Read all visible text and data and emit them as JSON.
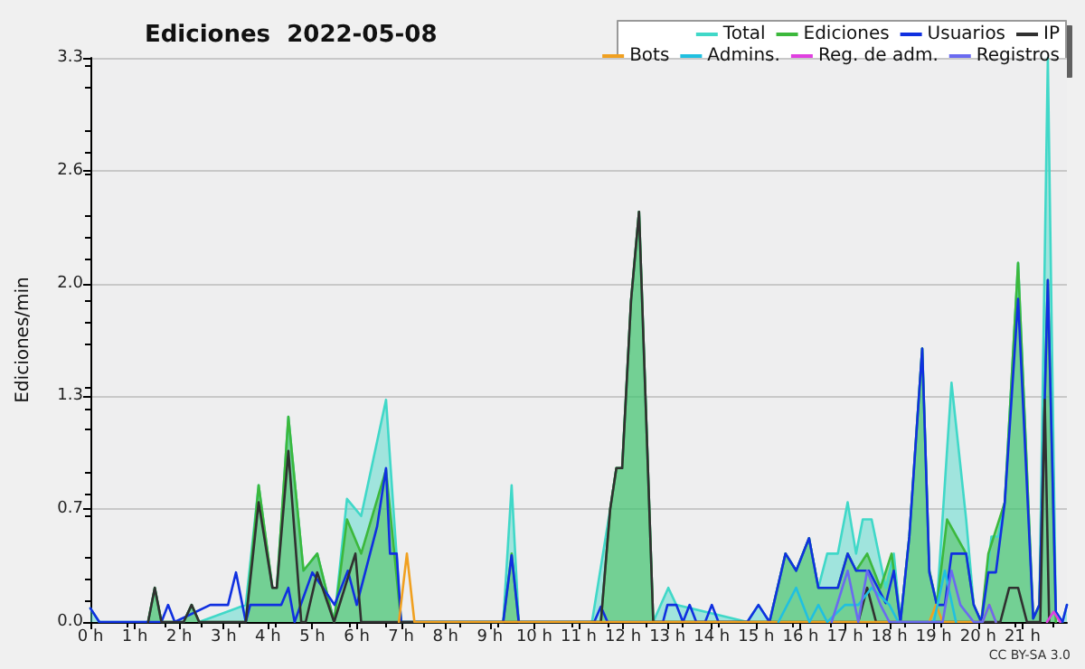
{
  "chart_data": {
    "type": "line",
    "title": "Ediciones  2022-05-08",
    "ylabel": "Ediciones/min",
    "annotations": [
      "CC BY-SA 3.0"
    ],
    "xlim": [
      0,
      22
    ],
    "xticks": [
      {
        "value": 0,
        "label": "0 h"
      },
      {
        "value": 1,
        "label": "1 h"
      },
      {
        "value": 2,
        "label": "2 h"
      },
      {
        "value": 3,
        "label": "3 h"
      },
      {
        "value": 4,
        "label": "4 h"
      },
      {
        "value": 5,
        "label": "5 h"
      },
      {
        "value": 6,
        "label": "6 h"
      },
      {
        "value": 7,
        "label": "7 h"
      },
      {
        "value": 8,
        "label": "8 h"
      },
      {
        "value": 9,
        "label": "9 h"
      },
      {
        "value": 10,
        "label": "10 h"
      },
      {
        "value": 11,
        "label": "11 h"
      },
      {
        "value": 12,
        "label": "12 h"
      },
      {
        "value": 13,
        "label": "13 h"
      },
      {
        "value": 14,
        "label": "14 h"
      },
      {
        "value": 15,
        "label": "15 h"
      },
      {
        "value": 16,
        "label": "16 h"
      },
      {
        "value": 17,
        "label": "17 h"
      },
      {
        "value": 18,
        "label": "18 h"
      },
      {
        "value": 19,
        "label": "19 h"
      },
      {
        "value": 20,
        "label": "20 h"
      },
      {
        "value": 21,
        "label": "21 h"
      }
    ],
    "ylim": [
      0,
      3.3
    ],
    "yticks": [
      {
        "value": 0,
        "label": "0.0"
      },
      {
        "value": 0.66,
        "label": "0.7"
      },
      {
        "value": 1.32,
        "label": "1.3"
      },
      {
        "value": 1.98,
        "label": "2.0"
      },
      {
        "value": 2.64,
        "label": "2.6"
      },
      {
        "value": 3.3,
        "label": "3.3"
      }
    ],
    "grid": "y",
    "legend": "top right",
    "marker": "none",
    "line_style": "solid",
    "series": [
      {
        "name": "Total",
        "type": "area",
        "color": "#40d8c8",
        "x": [
          0,
          0.2,
          1.3,
          1.45,
          1.6,
          2.1,
          2.28,
          2.45,
          3.5,
          3.79,
          4.1,
          4.2,
          4.46,
          4.8,
          5.11,
          5.49,
          5.78,
          6.1,
          6.66,
          7.0,
          9.3,
          9.49,
          9.65,
          11.3,
          11.71,
          11.85,
          11.98,
          12.18,
          12.36,
          12.68,
          12.85,
          13.02,
          13.2,
          14.8,
          15.05,
          15.3,
          15.66,
          15.9,
          16.19,
          16.4,
          16.6,
          16.84,
          17.06,
          17.25,
          17.4,
          17.6,
          17.92,
          18.1,
          18.25,
          18.45,
          18.74,
          18.9,
          19.07,
          19.4,
          19.73,
          19.9,
          20.07,
          20.3,
          20.45,
          20.6,
          20.9,
          21.24,
          21.38,
          21.57,
          21.75,
          21.9,
          22.0
        ],
        "values": [
          0.08,
          0,
          0,
          0.2,
          0,
          0,
          0.1,
          0,
          0.1,
          0.8,
          0.2,
          0.2,
          1.2,
          0.3,
          0.4,
          0,
          0.72,
          0.62,
          1.3,
          0,
          0,
          0.8,
          0,
          0,
          0.66,
          0.9,
          0.9,
          1.88,
          2.4,
          0,
          0.1,
          0.2,
          0.1,
          0,
          0.1,
          0,
          0.4,
          0.3,
          0.49,
          0.2,
          0.4,
          0.4,
          0.7,
          0.4,
          0.6,
          0.6,
          0.2,
          0.4,
          0,
          0.5,
          1.6,
          0.3,
          0.1,
          1.4,
          0.6,
          0.1,
          0,
          0.5,
          0.5,
          0.7,
          2.1,
          0.02,
          0.1,
          3.3,
          0.06,
          0,
          0.1
        ]
      },
      {
        "name": "Ediciones",
        "type": "area",
        "color": "#3cb83c",
        "x": [
          1.3,
          1.45,
          1.6,
          2.1,
          2.28,
          2.45,
          3.5,
          3.79,
          4.1,
          4.2,
          4.46,
          4.8,
          5.11,
          5.49,
          5.78,
          6.1,
          6.66,
          7.0,
          9.3,
          9.49,
          9.65,
          11.5,
          11.71,
          11.85,
          11.98,
          12.18,
          12.36,
          12.68,
          15.3,
          15.66,
          15.9,
          16.19,
          16.4,
          16.84,
          17.06,
          17.25,
          17.5,
          17.8,
          18.05,
          18.25,
          18.45,
          18.74,
          18.9,
          19.07,
          19.3,
          19.73,
          19.9,
          20.07,
          20.23,
          20.6,
          20.9,
          21.24,
          21.38,
          21.57,
          21.75
        ],
        "values": [
          0,
          0.2,
          0,
          0,
          0.1,
          0,
          0,
          0.8,
          0.2,
          0.2,
          1.2,
          0.3,
          0.4,
          0,
          0.6,
          0.4,
          0.89,
          0,
          0,
          0.4,
          0,
          0,
          0.66,
          0.9,
          0.9,
          1.88,
          2.4,
          0,
          0,
          0.4,
          0.3,
          0.49,
          0.2,
          0.2,
          0.4,
          0.3,
          0.4,
          0.2,
          0.4,
          0,
          0.5,
          1.6,
          0.3,
          0.1,
          0.6,
          0.4,
          0.1,
          0,
          0.4,
          0.7,
          2.1,
          0.02,
          0.1,
          2.0,
          0
        ]
      },
      {
        "name": "Usuarios",
        "type": "line",
        "color": "#1030e0",
        "x": [
          0,
          0.2,
          1.6,
          1.75,
          1.9,
          2.7,
          3.1,
          3.28,
          3.5,
          3.6,
          4.0,
          4.3,
          4.46,
          4.6,
          5.0,
          5.5,
          5.8,
          6.0,
          6.46,
          6.66,
          6.75,
          6.9,
          7.0,
          9.3,
          9.49,
          9.65,
          11.35,
          11.5,
          11.65,
          12.9,
          13.0,
          13.2,
          13.35,
          13.5,
          13.65,
          13.85,
          14.0,
          14.15,
          14.8,
          15.05,
          15.3,
          15.66,
          15.9,
          16.19,
          16.4,
          16.84,
          17.06,
          17.25,
          17.54,
          17.92,
          18.1,
          18.25,
          18.45,
          18.74,
          18.9,
          19.07,
          19.25,
          19.4,
          19.73,
          19.9,
          20.07,
          20.23,
          20.4,
          20.6,
          20.9,
          21.24,
          21.38,
          21.57,
          21.75,
          21.9,
          22.0
        ],
        "values": [
          0.08,
          0,
          0,
          0.1,
          0,
          0.1,
          0.1,
          0.29,
          0,
          0.1,
          0.1,
          0.1,
          0.2,
          0,
          0.29,
          0.1,
          0.3,
          0.1,
          0.56,
          0.9,
          0.4,
          0.4,
          0,
          0,
          0.39,
          0,
          0,
          0.09,
          0,
          0,
          0.1,
          0.1,
          0,
          0.1,
          0,
          0,
          0.1,
          0,
          0,
          0.1,
          0,
          0.4,
          0.3,
          0.49,
          0.2,
          0.2,
          0.4,
          0.3,
          0.3,
          0.11,
          0.3,
          0,
          0.5,
          1.6,
          0.29,
          0.1,
          0.1,
          0.4,
          0.4,
          0.1,
          0,
          0.29,
          0.29,
          0.7,
          1.89,
          0.02,
          0.1,
          2.0,
          0.06,
          0,
          0.1
        ]
      },
      {
        "name": "IP",
        "type": "line",
        "color": "#303030",
        "x": [
          1.3,
          1.45,
          1.6,
          2.1,
          2.28,
          2.45,
          3.5,
          3.79,
          4.1,
          4.2,
          4.46,
          4.75,
          4.85,
          5.11,
          5.49,
          5.97,
          6.1,
          11.5,
          11.71,
          11.85,
          11.98,
          12.18,
          12.36,
          12.68,
          17.3,
          17.5,
          17.7,
          20.5,
          20.7,
          20.9,
          21.1,
          21.4,
          21.5,
          21.6
        ],
        "values": [
          0,
          0.2,
          0,
          0,
          0.1,
          0,
          0,
          0.7,
          0.2,
          0.2,
          1.0,
          0,
          0,
          0.29,
          0,
          0.4,
          0,
          0,
          0.66,
          0.9,
          0.9,
          1.88,
          2.4,
          0,
          0,
          0.2,
          0,
          0,
          0.2,
          0.2,
          0,
          0,
          1.3,
          0
        ]
      },
      {
        "name": "Bots",
        "type": "line",
        "color": "#f0a020",
        "x": [
          6.95,
          7.13,
          7.3,
          18.9,
          19.05,
          19.2,
          20.1,
          20.25,
          20.4
        ],
        "values": [
          0,
          0.4,
          0,
          0,
          0.1,
          0,
          0,
          0.1,
          0
        ]
      },
      {
        "name": "Admins.",
        "type": "line",
        "color": "#20c0e0",
        "x": [
          15.5,
          15.9,
          16.2,
          16.4,
          16.6,
          17.0,
          17.3,
          17.6,
          18.0,
          18.2,
          19.0,
          19.25,
          19.5
        ],
        "values": [
          0,
          0.2,
          0,
          0.1,
          0,
          0.1,
          0.1,
          0.2,
          0.1,
          0,
          0,
          0.3,
          0
        ]
      },
      {
        "name": "Reg. de adm.",
        "type": "line",
        "color": "#e040e0",
        "x": [
          21.55,
          21.7,
          21.85
        ],
        "values": [
          0,
          0.06,
          0
        ]
      },
      {
        "name": "Registros",
        "type": "line",
        "color": "#6a6af0",
        "x": [
          16.7,
          17.06,
          17.3,
          17.5,
          17.8,
          18.0,
          19.2,
          19.4,
          19.6,
          19.9,
          20.1,
          20.25,
          20.4
        ],
        "values": [
          0,
          0.3,
          0,
          0.3,
          0.1,
          0,
          0,
          0.3,
          0.1,
          0,
          0,
          0.1,
          0
        ]
      }
    ]
  }
}
